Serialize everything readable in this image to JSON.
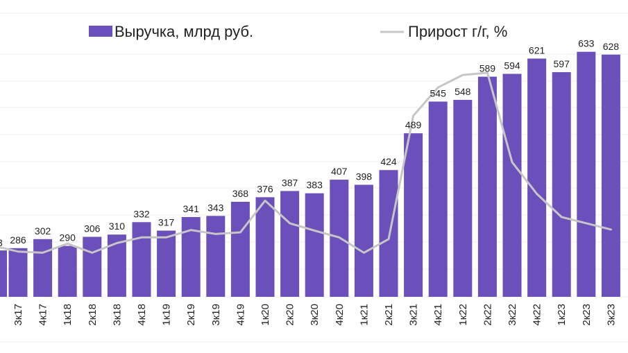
{
  "chart_data": {
    "type": "bar",
    "categories": [
      "3к17",
      "4к17",
      "1к18",
      "2к18",
      "3к18",
      "4к18",
      "1к19",
      "2к19",
      "3к19",
      "4к19",
      "1к20",
      "2к20",
      "3к20",
      "4к20",
      "1к21",
      "2к21",
      "3к21",
      "4к21",
      "1к22",
      "2к22",
      "3к22",
      "4к22",
      "1к23",
      "2к23",
      "3к23"
    ],
    "series": [
      {
        "name": "Выручка, млрд руб.",
        "type": "bar",
        "values": [
          286,
          302,
          290,
          306,
          310,
          332,
          317,
          341,
          343,
          368,
          376,
          387,
          383,
          407,
          398,
          424,
          489,
          545,
          548,
          589,
          594,
          621,
          597,
          633,
          628
        ]
      },
      {
        "name": "Прирост г/г, %",
        "type": "line",
        "values": [
          280,
          278,
          294,
          278,
          295,
          305,
          305,
          318,
          311,
          314,
          370,
          330,
          317,
          305,
          278,
          302,
          520,
          570,
          592,
          596,
          438,
          382,
          341,
          330,
          319
        ]
      }
    ],
    "partial_left_label": "3",
    "ylim": [
      200,
      700
    ],
    "grid": true,
    "legend_position": "top",
    "colors": {
      "bar": "#6B4FBB",
      "line": "#C6C6C6",
      "grid": "#ECECEC",
      "text": "#222222"
    }
  }
}
